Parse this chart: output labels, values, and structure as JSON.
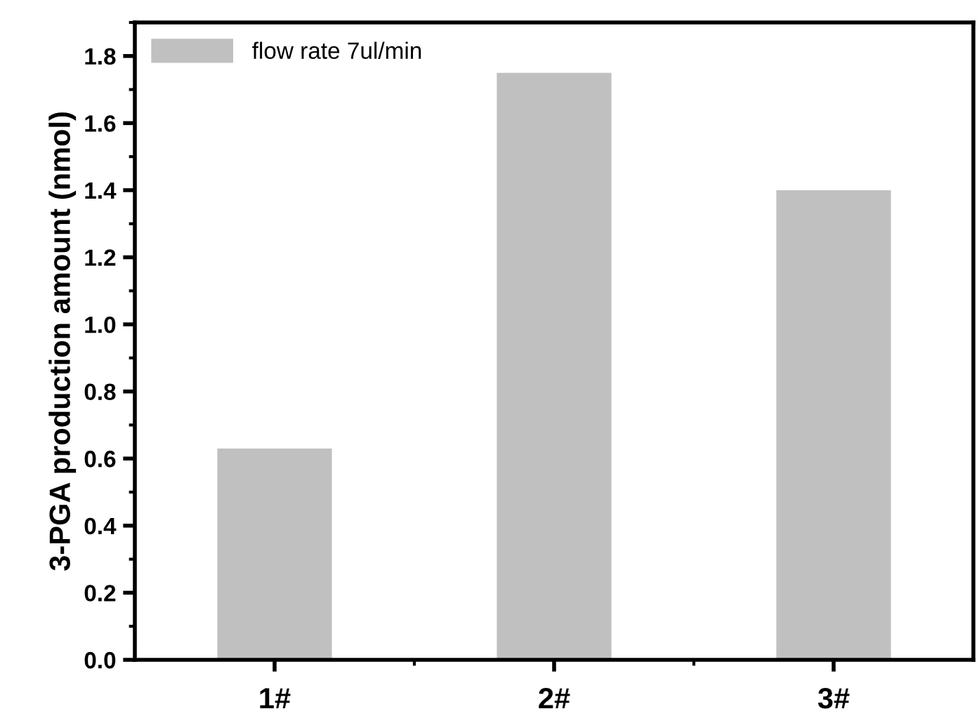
{
  "chart_data": {
    "type": "bar",
    "ylabel": "3-PGA production amount (nmol)",
    "categories": [
      "1#",
      "2#",
      "3#"
    ],
    "series": [
      {
        "name": "flow rate 7ul/min",
        "color": "#c0c0c0",
        "values": [
          0.63,
          1.75,
          1.4
        ]
      }
    ],
    "ylim": [
      0,
      1.9
    ],
    "yticks": [
      {
        "value": 0,
        "label": "0.0"
      },
      {
        "value": 0.2,
        "label": "0.2"
      },
      {
        "value": 0.4,
        "label": "0.4"
      },
      {
        "value": 0.6,
        "label": "0.6"
      },
      {
        "value": 0.8,
        "label": "0.8"
      },
      {
        "value": 1.0,
        "label": "1.0"
      },
      {
        "value": 1.2,
        "label": "1.2"
      },
      {
        "value": 1.4,
        "label": "1.4"
      },
      {
        "value": 1.6,
        "label": "1.6"
      },
      {
        "value": 1.8,
        "label": "1.8"
      }
    ],
    "grid": false,
    "legend": "top left"
  }
}
